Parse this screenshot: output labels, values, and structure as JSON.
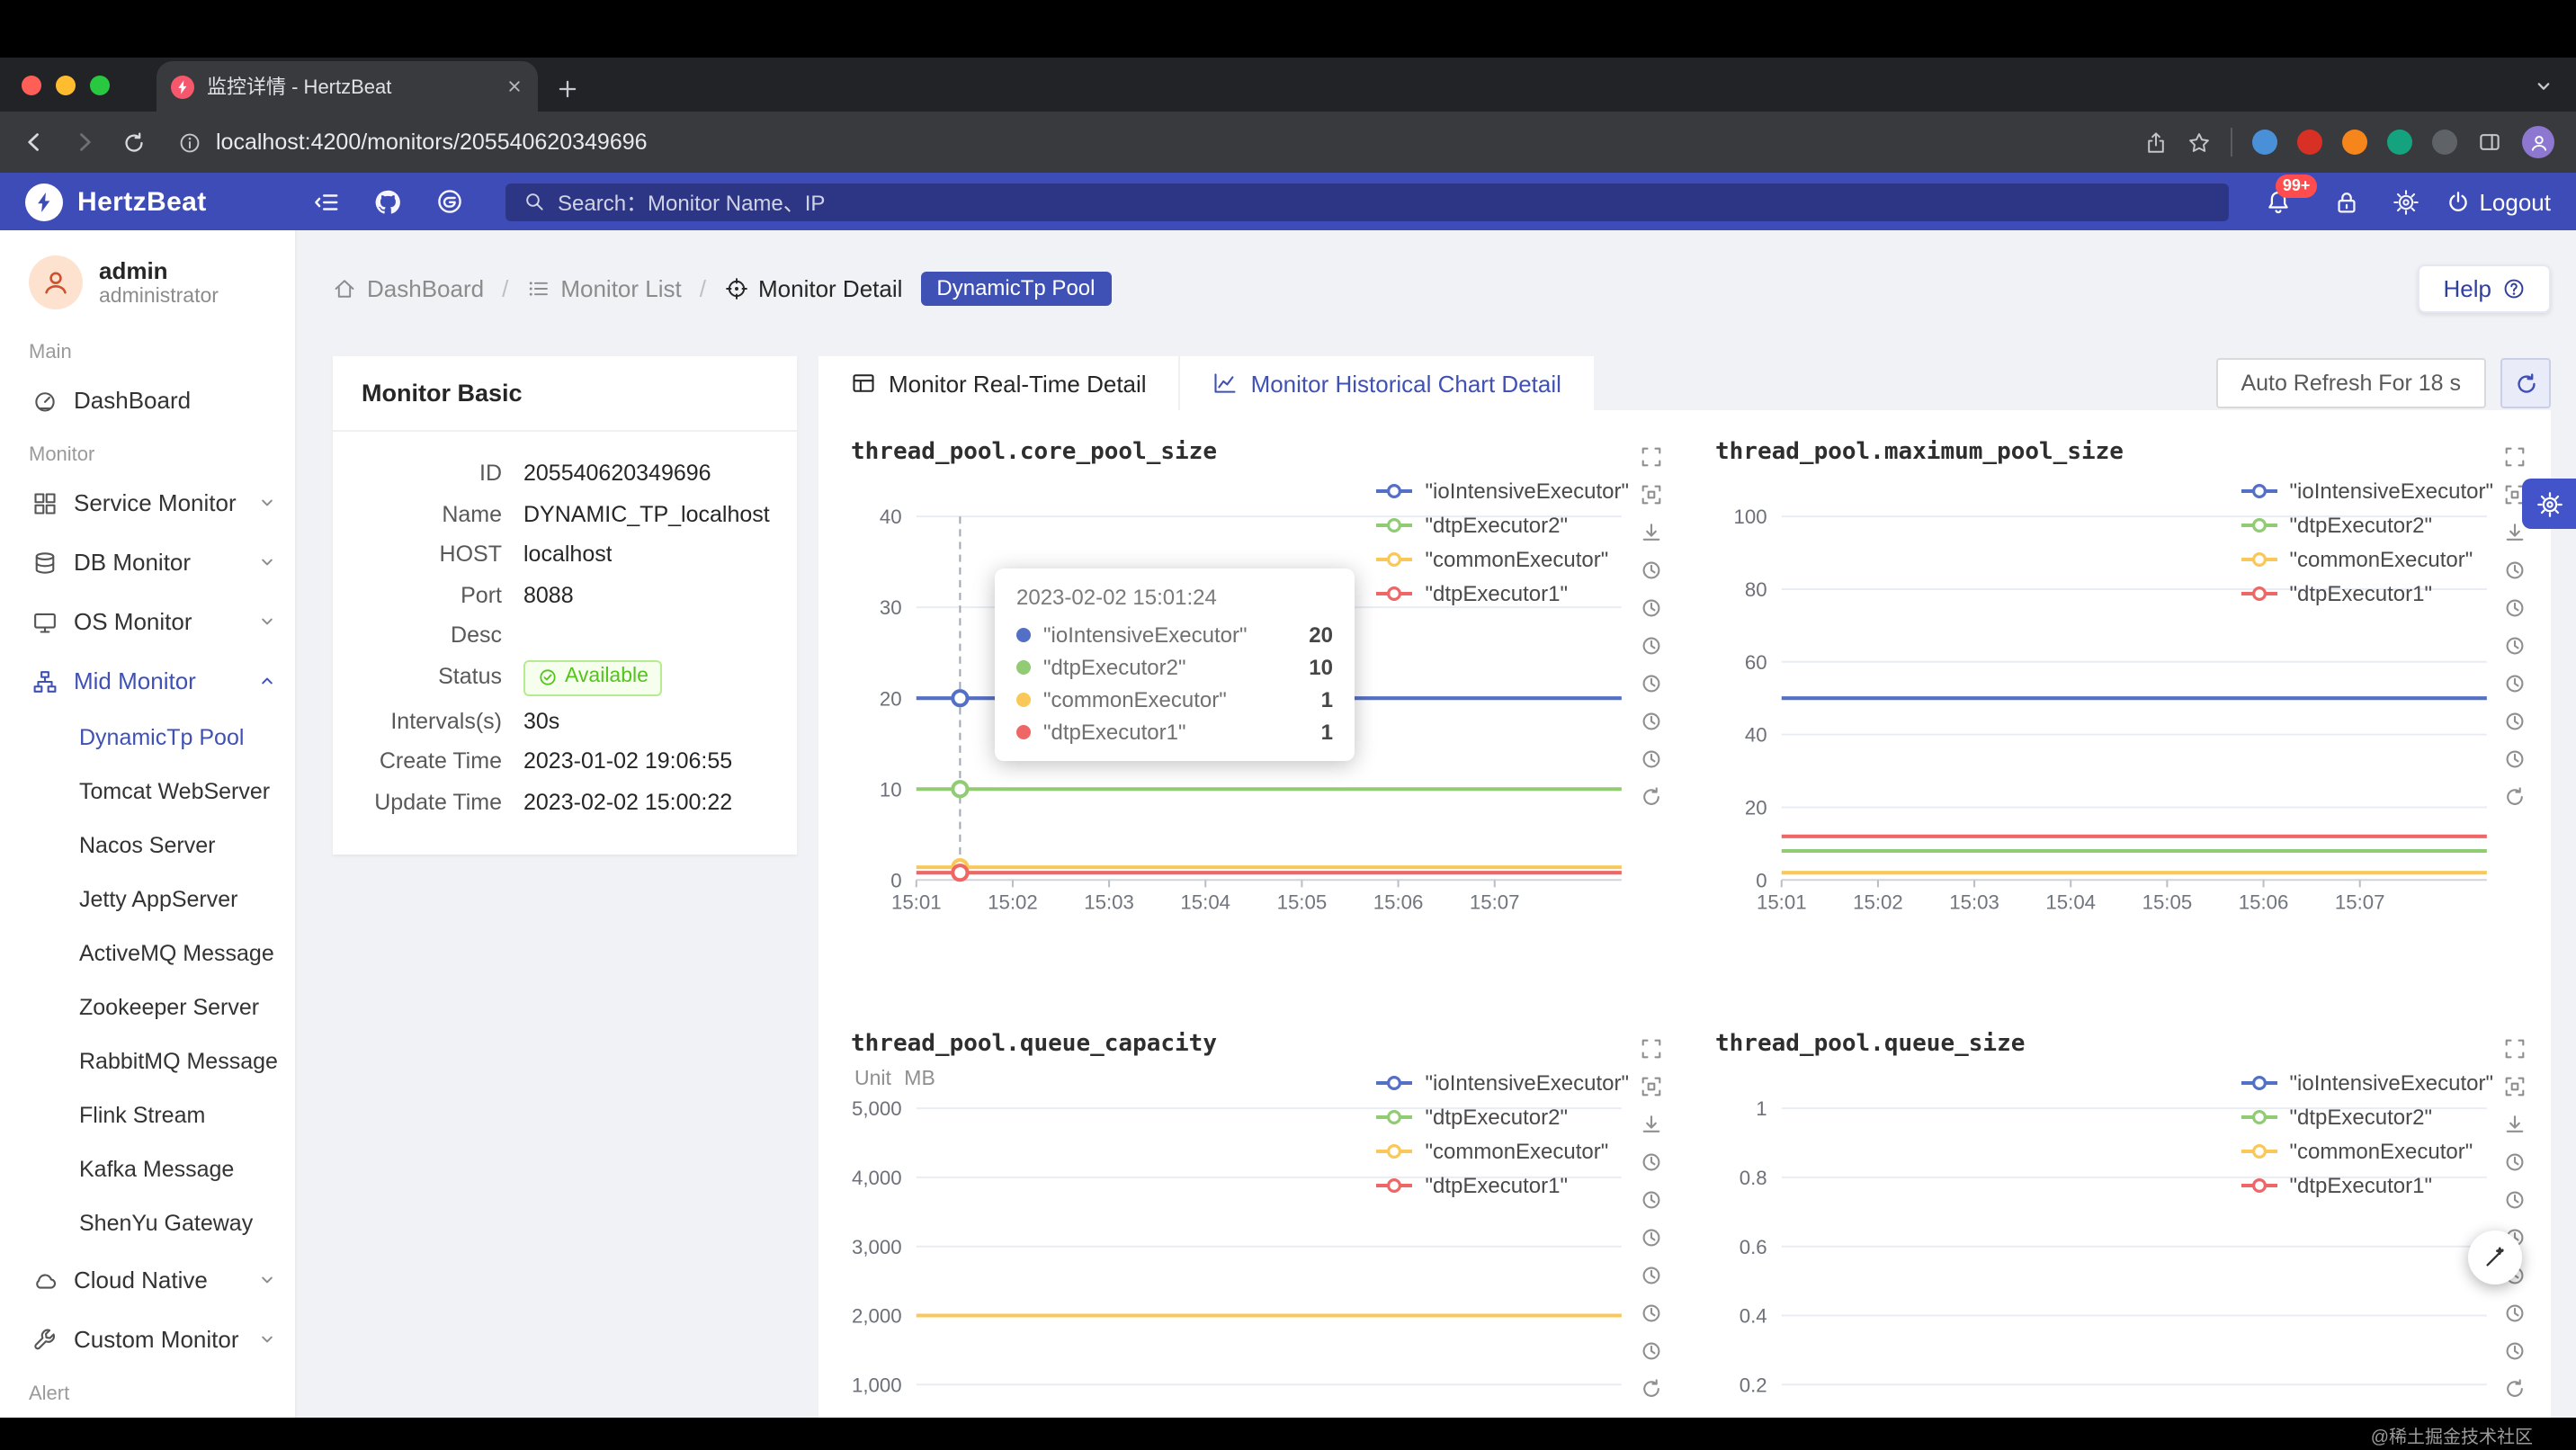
{
  "chrome": {
    "tab_title": "监控详情 - HertzBeat",
    "url": "localhost:4200/monitors/205540620349696"
  },
  "header": {
    "brand": "HertzBeat",
    "search_placeholder": "Search：Monitor Name、IP",
    "notification_count": "99+",
    "logout": "Logout"
  },
  "sidebar": {
    "user_name": "admin",
    "user_role": "administrator",
    "groups": [
      {
        "label": "Main",
        "items": [
          {
            "label": "DashBoard",
            "icon": "dashboard"
          }
        ]
      },
      {
        "label": "Monitor",
        "items": [
          {
            "label": "Service Monitor",
            "icon": "appstore",
            "chevron": "down"
          },
          {
            "label": "DB Monitor",
            "icon": "database",
            "chevron": "down"
          },
          {
            "label": "OS Monitor",
            "icon": "desktop",
            "chevron": "down"
          },
          {
            "label": "Mid Monitor",
            "icon": "cluster",
            "chevron": "up",
            "active": true,
            "children": [
              {
                "label": "DynamicTp Pool",
                "active": true
              },
              {
                "label": "Tomcat WebServer"
              },
              {
                "label": "Nacos Server"
              },
              {
                "label": "Jetty AppServer"
              },
              {
                "label": "ActiveMQ Message"
              },
              {
                "label": "Zookeeper Server"
              },
              {
                "label": "RabbitMQ Message"
              },
              {
                "label": "Flink Stream"
              },
              {
                "label": "Kafka Message"
              },
              {
                "label": "ShenYu Gateway"
              }
            ]
          },
          {
            "label": "Cloud Native",
            "icon": "cloud",
            "chevron": "down"
          },
          {
            "label": "Custom Monitor",
            "icon": "tool",
            "chevron": "down"
          }
        ]
      },
      {
        "label": "Alert",
        "items": []
      }
    ]
  },
  "breadcrumb": {
    "items": [
      {
        "label": "DashBoard",
        "icon": "home"
      },
      {
        "label": "Monitor List",
        "icon": "list"
      },
      {
        "label": "Monitor Detail",
        "icon": "aim"
      }
    ],
    "badge": "DynamicTp Pool",
    "help": "Help"
  },
  "basic": {
    "title": "Monitor Basic",
    "fields": [
      {
        "label": "ID",
        "value": "205540620349696"
      },
      {
        "label": "Name",
        "value": "DYNAMIC_TP_localhost"
      },
      {
        "label": "HOST",
        "value": "localhost"
      },
      {
        "label": "Port",
        "value": "8088"
      },
      {
        "label": "Desc",
        "value": ""
      },
      {
        "label": "Status",
        "value": "Available",
        "type": "badge"
      },
      {
        "label": "Intervals(s)",
        "value": "30s"
      },
      {
        "label": "Create Time",
        "value": "2023-01-02 19:06:55"
      },
      {
        "label": "Update Time",
        "value": "2023-02-02 15:00:22"
      }
    ]
  },
  "tabs": [
    {
      "label": "Monitor Real-Time Detail",
      "icon": "table",
      "active": false
    },
    {
      "label": "Monitor Historical Chart Detail",
      "icon": "chart",
      "active": true
    }
  ],
  "auto_refresh": "Auto Refresh For 18 s",
  "colors": {
    "header_blue": "#3e4cb8",
    "accent": "#3f51b5",
    "palette": [
      "#5470c6",
      "#91cc75",
      "#fac858",
      "#ee6666"
    ],
    "status_green": "#52c41a"
  },
  "chart_data": [
    {
      "type": "line",
      "title": "thread_pool.core_pool_size",
      "ylim": [
        0,
        40
      ],
      "yticks": [
        40,
        30,
        20,
        10,
        0
      ],
      "ytick_labels": [
        "40",
        "30",
        "20",
        "10",
        "0"
      ],
      "xticks": [
        "15:01",
        "15:02",
        "15:03",
        "15:04",
        "15:05",
        "15:06",
        "15:07"
      ],
      "series": [
        {
          "name": "\"ioIntensiveExecutor\"",
          "value": 20
        },
        {
          "name": "\"dtpExecutor2\"",
          "value": 10
        },
        {
          "name": "\"commonExecutor\"",
          "value": 1.4
        },
        {
          "name": "\"dtpExecutor1\"",
          "value": 0.8
        }
      ],
      "tooltip": {
        "time": "2023-02-02 15:01:24",
        "rows": [
          {
            "name": "\"ioIntensiveExecutor\"",
            "value": "20"
          },
          {
            "name": "\"dtpExecutor2\"",
            "value": "10"
          },
          {
            "name": "\"commonExecutor\"",
            "value": "1"
          },
          {
            "name": "\"dtpExecutor1\"",
            "value": "1"
          }
        ]
      }
    },
    {
      "type": "line",
      "title": "thread_pool.maximum_pool_size",
      "ylim": [
        0,
        100
      ],
      "yticks": [
        100,
        80,
        60,
        40,
        20,
        0
      ],
      "ytick_labels": [
        "100",
        "80",
        "60",
        "40",
        "20",
        "0"
      ],
      "xticks": [
        "15:01",
        "15:02",
        "15:03",
        "15:04",
        "15:05",
        "15:06",
        "15:07"
      ],
      "series": [
        {
          "name": "\"ioIntensiveExecutor\"",
          "value": 50
        },
        {
          "name": "\"dtpExecutor2\"",
          "value": 8
        },
        {
          "name": "\"commonExecutor\"",
          "value": 2
        },
        {
          "name": "\"dtpExecutor1\"",
          "value": 12
        }
      ]
    },
    {
      "type": "line",
      "title": "thread_pool.queue_capacity",
      "unit_label": "Unit MB",
      "ylim": [
        0,
        5000
      ],
      "yticks": [
        5000,
        4000,
        3000,
        2000,
        1000
      ],
      "ytick_labels": [
        "5,000",
        "4,000",
        "3,000",
        "2,000",
        "1,000"
      ],
      "xticks": [],
      "series": [
        {
          "name": "\"ioIntensiveExecutor\"",
          "value": null
        },
        {
          "name": "\"dtpExecutor2\"",
          "value": null
        },
        {
          "name": "\"commonExecutor\"",
          "value": 2000
        },
        {
          "name": "\"dtpExecutor1\"",
          "value": null
        }
      ]
    },
    {
      "type": "line",
      "title": "thread_pool.queue_size",
      "ylim": [
        0,
        1
      ],
      "yticks": [
        1,
        0.8,
        0.6,
        0.4,
        0.2
      ],
      "ytick_labels": [
        "1",
        "0.8",
        "0.6",
        "0.4",
        "0.2"
      ],
      "xticks": [],
      "series": [
        {
          "name": "\"ioIntensiveExecutor\"",
          "value": null
        },
        {
          "name": "\"dtpExecutor2\"",
          "value": null
        },
        {
          "name": "\"commonExecutor\"",
          "value": null
        },
        {
          "name": "\"dtpExecutor1\"",
          "value": null
        }
      ]
    }
  ],
  "footer": {
    "watermark": "@稀土掘金技术社区"
  }
}
